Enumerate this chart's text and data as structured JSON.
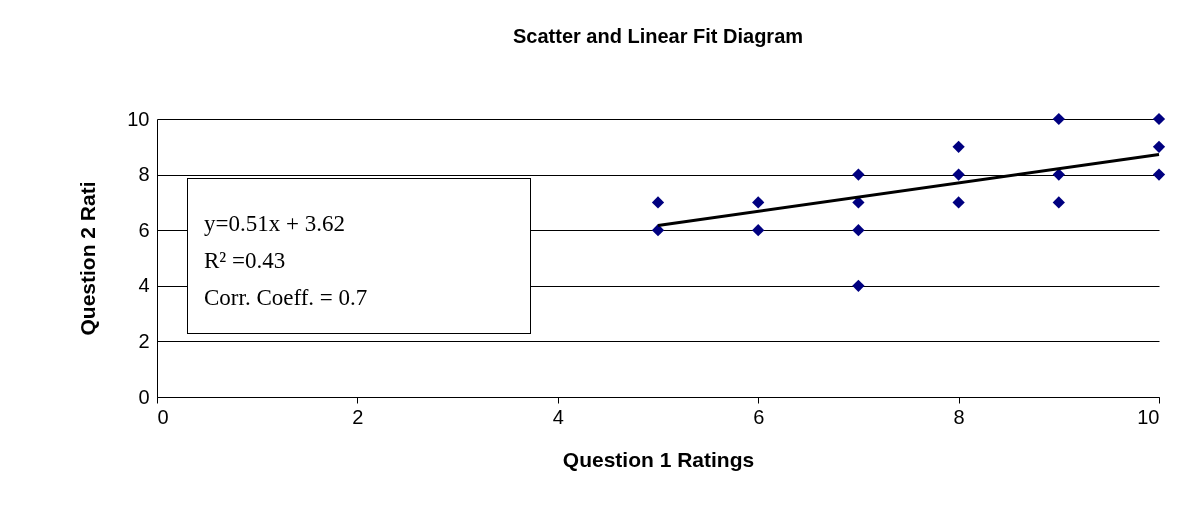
{
  "chart_data": {
    "type": "scatter",
    "title": "Scatter and Linear Fit Diagram",
    "xlabel": "Question 1 Ratings",
    "ylabel": "Question 2 Rati",
    "annotations": [
      "y=0.51x + 3.62",
      "R² =0.43",
      "Corr. Coeff. = 0.7"
    ],
    "xlim": [
      0,
      10
    ],
    "xticks": [
      0,
      2,
      4,
      6,
      8,
      10
    ],
    "ylim": [
      0,
      10
    ],
    "yticks": [
      0,
      2,
      4,
      6,
      8,
      10
    ],
    "grid": "y",
    "series": [
      {
        "marker": "diamond",
        "color": "#000080",
        "x": [
          5,
          5,
          6,
          6,
          7,
          7,
          7,
          7,
          8,
          8,
          8,
          9,
          9,
          9,
          10,
          10,
          10
        ],
        "values": [
          7,
          6,
          7,
          6,
          8,
          7,
          6,
          4,
          9,
          8,
          7,
          10,
          8,
          7,
          10,
          9,
          8
        ]
      },
      {
        "type": "line",
        "color": "#000000",
        "x": [
          5,
          10
        ],
        "values": [
          6.17,
          8.72
        ]
      }
    ]
  }
}
